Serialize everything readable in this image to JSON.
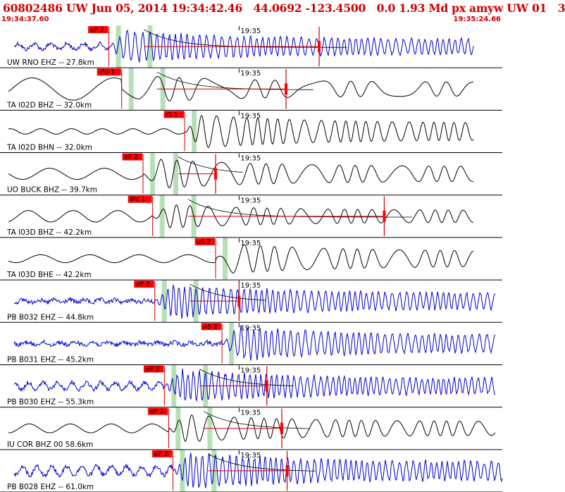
{
  "header": {
    "title": "60802486 UW Jun 05, 2014 19:34:42.46   44.0692 -123.4500   0.0 1.93 Md px amyw UW 01   3",
    "start_time": "19:34:37.60",
    "end_time": "19:35:24.66"
  },
  "colors": {
    "header_text": "#cc0000",
    "trace_vertical": "#0000cc",
    "trace_horizontal": "#000000",
    "pick_box": "#ff0000",
    "pick_line": "#cc0000",
    "phase_window": "#b8e0b8",
    "coda_fit": "#cc0000",
    "separator": "#000000"
  },
  "chart_data": {
    "type": "line",
    "title": "60802486 UW Jun 05, 2014 19:34:42.46   44.0692 -123.4500   0.0 1.93 Md px amyw UW 01   3",
    "x_range_seconds": [
      37.6,
      84.66
    ],
    "x_reference": "19:34:00",
    "minute_mark": {
      "label": "19:35",
      "seconds": 60.0
    },
    "grid": false,
    "traces": [
      {
        "label": "UW RNO EHZ -- 27.8km",
        "color": "blue",
        "amplitude": 0.75,
        "freq": 3.0,
        "noise": 0.35,
        "pre_amp": 0.18,
        "onset_s": 47.8,
        "data_end_s": 82.0,
        "picks": [
          {
            "label": "eP 2",
            "seconds": 47.8
          }
        ],
        "s_marker_s": 67.5,
        "coda_fit": true
      },
      {
        "label": "TA I02D BHZ -- 32.0km",
        "color": "black",
        "amplitude": 0.7,
        "freq": 0.6,
        "noise": 0.0,
        "pre_amp": 0.75,
        "onset_s": 49.0,
        "data_end_s": 82.0,
        "picks": [
          {
            "label": "iPd 1",
            "seconds": 49.0
          }
        ],
        "s_marker_s": 64.4,
        "coda_fit": true
      },
      {
        "label": "TA I02D BHN -- 32.0km",
        "color": "black",
        "amplitude": 0.85,
        "freq": 1.6,
        "noise": 0.0,
        "pre_amp": 0.15,
        "onset_s": 54.9,
        "data_end_s": 82.0,
        "picks": [
          {
            "label": "iS 1",
            "seconds": 54.9
          }
        ],
        "s_marker_s": null,
        "coda_fit": false
      },
      {
        "label": "UO BUCK BHZ -- 39.7km",
        "color": "black",
        "amplitude": 0.75,
        "freq": 0.9,
        "noise": 0.0,
        "pre_amp": 0.35,
        "onset_s": 51.0,
        "data_end_s": 82.0,
        "picks": [
          {
            "label": "eP 2",
            "seconds": 51.0
          }
        ],
        "s_marker_s": 57.8,
        "coda_fit": true
      },
      {
        "label": "TA I03D BHZ -- 42.2km",
        "color": "black",
        "amplitude": 0.6,
        "freq": 1.1,
        "noise": 0.0,
        "pre_amp": 0.45,
        "onset_s": 51.9,
        "data_end_s": 82.0,
        "picks": [
          {
            "label": "iPc 1",
            "seconds": 51.9
          }
        ],
        "s_marker_s": 73.6,
        "coda_fit": true
      },
      {
        "label": "TA I03D BHE -- 42.2km",
        "color": "black",
        "amplitude": 0.75,
        "freq": 1.0,
        "noise": 0.0,
        "pre_amp": 0.25,
        "onset_s": 57.8,
        "data_end_s": 82.0,
        "picks": [
          {
            "label": "eS 2",
            "seconds": 57.8
          }
        ],
        "s_marker_s": null,
        "coda_fit": false
      },
      {
        "label": "PB B032 EHZ -- 44.8km",
        "color": "blue",
        "amplitude": 0.8,
        "freq": 3.2,
        "noise": 0.35,
        "pre_amp": 0.08,
        "onset_s": 52.1,
        "data_end_s": 84.0,
        "picks": [
          {
            "label": "eP 2",
            "seconds": 52.1
          }
        ],
        "s_marker_s": 60.0,
        "coda_fit": true
      },
      {
        "label": "PB B031 EHZ -- 45.2km",
        "color": "blue",
        "amplitude": 0.8,
        "freq": 3.0,
        "noise": 0.35,
        "pre_amp": 0.08,
        "onset_s": 58.4,
        "data_end_s": 84.0,
        "picks": [
          {
            "label": "eS 2",
            "seconds": 58.4
          }
        ],
        "s_marker_s": null,
        "coda_fit": false
      },
      {
        "label": "PB B030 EHZ -- 55.3km",
        "color": "blue",
        "amplitude": 0.75,
        "freq": 3.4,
        "noise": 0.45,
        "pre_amp": 0.22,
        "onset_s": 53.0,
        "data_end_s": 84.0,
        "picks": [
          {
            "label": "eP 2",
            "seconds": 53.0
          }
        ],
        "s_marker_s": 62.6,
        "coda_fit": true
      },
      {
        "label": "IU COR BHZ 00 58.6km",
        "color": "black",
        "amplitude": 0.7,
        "freq": 1.2,
        "noise": 0.0,
        "pre_amp": 0.3,
        "onset_s": 53.4,
        "data_end_s": 84.0,
        "picks": [
          {
            "label": "eP 2",
            "seconds": 53.4
          }
        ],
        "s_marker_s": 64.0,
        "coda_fit": true
      },
      {
        "label": "PB B028 EHZ -- 61.0km",
        "color": "blue",
        "amplitude": 0.85,
        "freq": 3.3,
        "noise": 0.45,
        "pre_amp": 0.25,
        "onset_s": 53.8,
        "data_end_s": 84.66,
        "picks": [
          {
            "label": "eP 2",
            "seconds": 53.8
          }
        ],
        "s_marker_s": 64.5,
        "coda_fit": true
      }
    ]
  }
}
